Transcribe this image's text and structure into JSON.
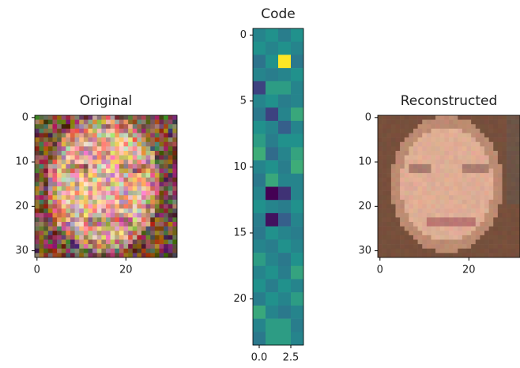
{
  "chart_data": [
    {
      "type": "image",
      "title": "Original",
      "xlim": [
        -0.5,
        31.5
      ],
      "ylim": [
        31.5,
        -0.5
      ],
      "xticks": [
        0,
        20
      ],
      "yticks": [
        0,
        10,
        20,
        30
      ]
    },
    {
      "type": "heatmap",
      "title": "Code",
      "cmap": "viridis",
      "xlim": [
        -0.5,
        3.5
      ],
      "ylim": [
        23.5,
        -0.5
      ],
      "xticks": [
        {
          "value": 0,
          "label": "0.0"
        },
        {
          "value": 2.5,
          "label": "2.5"
        }
      ],
      "yticks": [
        0,
        5,
        10,
        15,
        20
      ],
      "values": [
        [
          0.45,
          0.5,
          0.42,
          0.5
        ],
        [
          0.5,
          0.45,
          0.5,
          0.45
        ],
        [
          0.38,
          0.5,
          1.0,
          0.4
        ],
        [
          0.45,
          0.42,
          0.45,
          0.5
        ],
        [
          0.2,
          0.55,
          0.55,
          0.45
        ],
        [
          0.45,
          0.5,
          0.42,
          0.45
        ],
        [
          0.4,
          0.2,
          0.45,
          0.6
        ],
        [
          0.5,
          0.45,
          0.3,
          0.45
        ],
        [
          0.55,
          0.42,
          0.5,
          0.5
        ],
        [
          0.62,
          0.35,
          0.45,
          0.58
        ],
        [
          0.45,
          0.5,
          0.42,
          0.62
        ],
        [
          0.4,
          0.6,
          0.45,
          0.45
        ],
        [
          0.45,
          0.0,
          0.15,
          0.45
        ],
        [
          0.5,
          0.45,
          0.42,
          0.5
        ],
        [
          0.42,
          0.05,
          0.3,
          0.45
        ],
        [
          0.4,
          0.5,
          0.45,
          0.42
        ],
        [
          0.45,
          0.42,
          0.5,
          0.45
        ],
        [
          0.55,
          0.45,
          0.4,
          0.5
        ],
        [
          0.45,
          0.5,
          0.42,
          0.58
        ],
        [
          0.5,
          0.42,
          0.5,
          0.45
        ],
        [
          0.42,
          0.5,
          0.45,
          0.55
        ],
        [
          0.6,
          0.45,
          0.4,
          0.45
        ],
        [
          0.45,
          0.55,
          0.55,
          0.42
        ],
        [
          0.4,
          0.55,
          0.55,
          0.45
        ]
      ]
    },
    {
      "type": "image",
      "title": "Reconstructed",
      "xlim": [
        -0.5,
        31.5
      ],
      "ylim": [
        31.5,
        -0.5
      ],
      "xticks": [
        0,
        20
      ],
      "yticks": [
        0,
        10,
        20,
        30
      ]
    }
  ]
}
